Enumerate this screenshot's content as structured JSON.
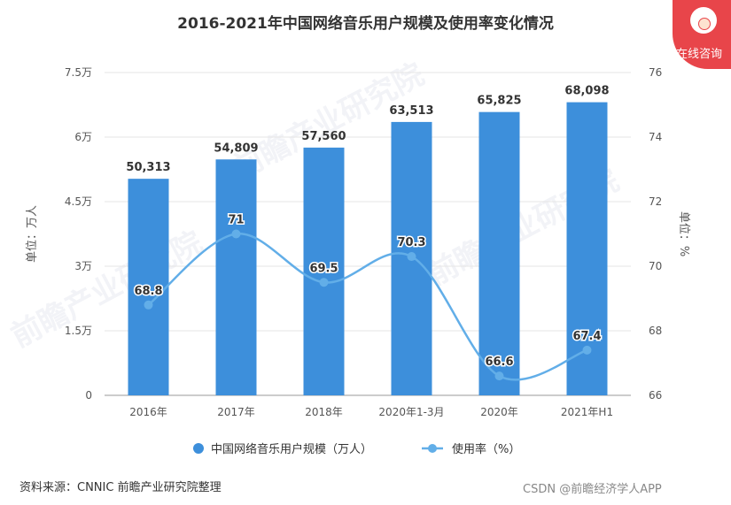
{
  "chart_data": {
    "type": "bar",
    "title": "2016-2021年中国网络音乐用户规模及使用率变化情况",
    "categories": [
      "2016年",
      "2017年",
      "2018年",
      "2020年1-3月",
      "2020年",
      "2021年H1"
    ],
    "series": [
      {
        "name": "中国网络音乐用户规模（万人）",
        "type": "bar",
        "axis": "left",
        "values": [
          50313,
          54809,
          57560,
          63513,
          65825,
          68098
        ],
        "labels": [
          "50,313",
          "54,809",
          "57,560",
          "63,513",
          "65,825",
          "68,098"
        ]
      },
      {
        "name": "使用率（%）",
        "type": "line",
        "axis": "right",
        "values": [
          68.8,
          71,
          69.5,
          70.3,
          66.6,
          67.4
        ],
        "labels": [
          "68.8",
          "71",
          "69.5",
          "70.3",
          "66.6",
          "67.4"
        ]
      }
    ],
    "ylabel": "单位：万人",
    "ylabel_right": "单位：%",
    "ylim": [
      0,
      75000
    ],
    "ylim_right": [
      66,
      76
    ],
    "yticks": [
      0,
      15000,
      30000,
      45000,
      60000,
      75000
    ],
    "ytick_labels": [
      "0",
      "1.5万",
      "3万",
      "4.5万",
      "6万",
      "7.5万"
    ],
    "yticks_right": [
      66,
      68,
      70,
      72,
      74,
      76
    ],
    "grid": true,
    "legend_position": "bottom",
    "colors": {
      "bar": "#3d8fdb",
      "line": "#62aee8"
    }
  },
  "source": "资料来源：CNNIC 前瞻产业研究院整理",
  "watermark_text": "前瞻产业研究院",
  "footer_watermark": "CSDN @前瞻经济学人APP",
  "badge_label": "在线咨询"
}
